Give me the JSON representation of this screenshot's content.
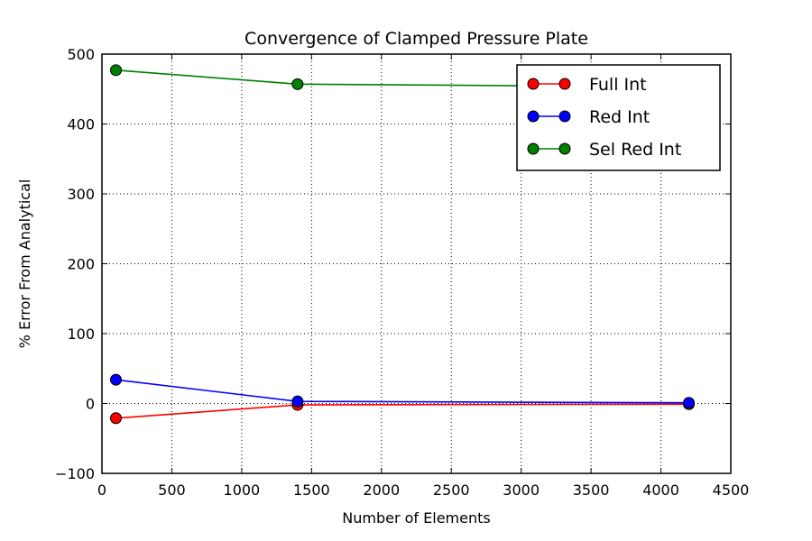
{
  "chart_data": {
    "type": "line",
    "title": "Convergence of Clamped Pressure Plate",
    "xlabel": "Number of Elements",
    "ylabel": "% Error From Analytical",
    "xlim": [
      0,
      4500
    ],
    "ylim": [
      -100,
      500
    ],
    "xticks": [
      0,
      500,
      1000,
      1500,
      2000,
      2500,
      3000,
      3500,
      4000,
      4500
    ],
    "yticks": [
      -100,
      0,
      100,
      200,
      300,
      400,
      500
    ],
    "ytick_labels": [
      "−100",
      "0",
      "100",
      "200",
      "300",
      "400",
      "500"
    ],
    "grid": true,
    "legend_position": "top-right",
    "series": [
      {
        "name": "Full Int",
        "color": "#ff0000",
        "x": [
          100,
          1400,
          4200
        ],
        "y": [
          -21,
          -2,
          -1
        ]
      },
      {
        "name": "Red Int",
        "color": "#0000ff",
        "x": [
          100,
          1400,
          4200
        ],
        "y": [
          34,
          3,
          1
        ]
      },
      {
        "name": "Sel Red Int",
        "color": "#008000",
        "x": [
          100,
          1400,
          4200
        ],
        "y": [
          477,
          457,
          453
        ]
      }
    ]
  }
}
